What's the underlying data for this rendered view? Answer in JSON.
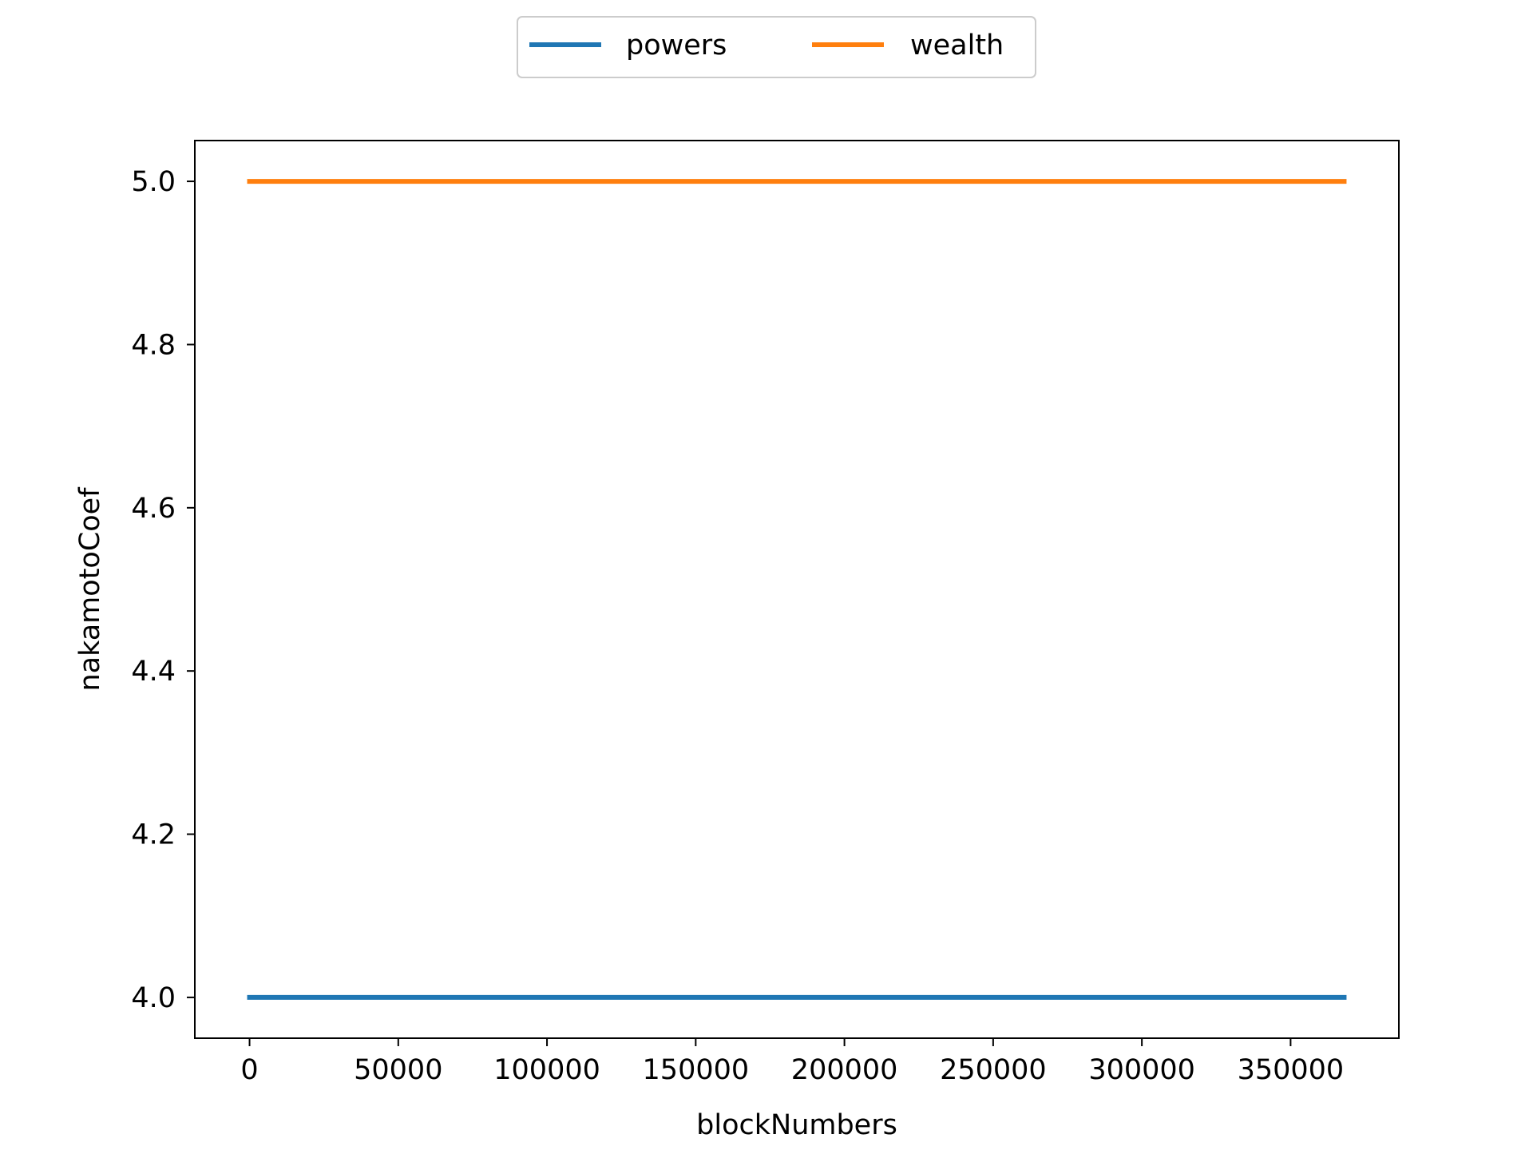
{
  "chart_data": {
    "type": "line",
    "title": "",
    "xlabel": "blockNumbers",
    "ylabel": "nakamotoCoef",
    "xlim": [
      -18400,
      386400
    ],
    "ylim": [
      3.95,
      5.05
    ],
    "xticks": [
      0,
      50000,
      100000,
      150000,
      200000,
      250000,
      300000,
      350000
    ],
    "yticks": [
      4.0,
      4.2,
      4.4,
      4.6,
      4.8,
      5.0
    ],
    "xtick_labels": [
      "0",
      "50000",
      "100000",
      "150000",
      "200000",
      "250000",
      "300000",
      "350000"
    ],
    "ytick_labels": [
      "4.0",
      "4.2",
      "4.4",
      "4.6",
      "4.8",
      "5.0"
    ],
    "grid": false,
    "legend": {
      "placement": "top-center, outside plot",
      "columns": 2
    },
    "series": [
      {
        "name": "powers",
        "color": "#1f77b4",
        "x": [
          0,
          368000
        ],
        "y": [
          4.0,
          4.0
        ]
      },
      {
        "name": "wealth",
        "color": "#ff7f0e",
        "x": [
          0,
          368000
        ],
        "y": [
          5.0,
          5.0
        ]
      }
    ]
  }
}
